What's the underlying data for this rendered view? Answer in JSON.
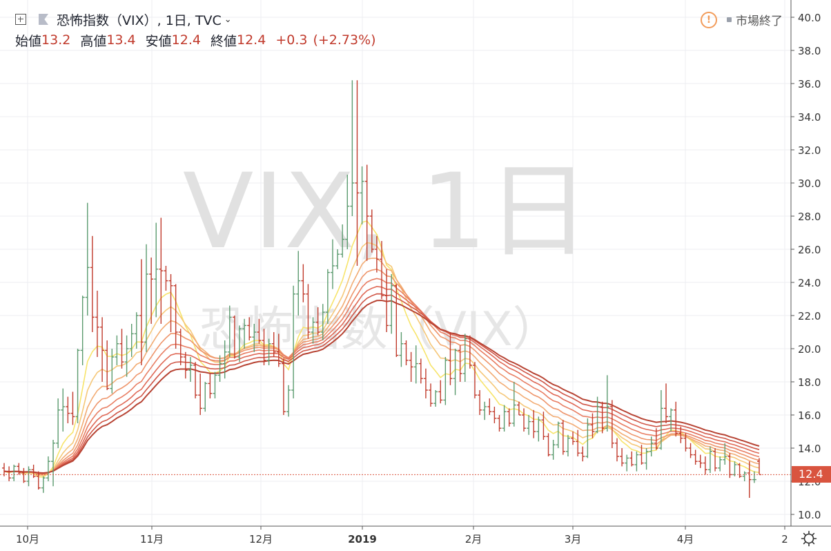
{
  "legend": {
    "title": "恐怖指数（VIX）, 1日, TVC",
    "open_label": "始値",
    "open": "13.2",
    "high_label": "高値",
    "high": "13.4",
    "low_label": "安値",
    "low": "12.4",
    "close_label": "終値",
    "close": "12.4",
    "change": "+0.3",
    "change_pct": "(+2.73%)"
  },
  "status": {
    "text": "市場終了"
  },
  "watermark": {
    "line1": "VIX, 1日",
    "line2": "恐怖指数（VIX）"
  },
  "last_price_label": "12.4",
  "colors": {
    "up": "#5a9a6e",
    "down": "#c0392b",
    "grid": "#eceef2",
    "ribbon": [
      "#f7e46b",
      "#f5c778",
      "#f2ab72",
      "#ee946a",
      "#e87d62",
      "#df6855",
      "#cf5546",
      "#b74333"
    ],
    "price_tag": "#d9543f"
  },
  "chart_data": {
    "type": "ohlc",
    "x_axis": {
      "ticks": [
        "10月",
        "11月",
        "12月",
        "2019",
        "2月",
        "3月",
        "4月",
        "2"
      ]
    },
    "y_axis": {
      "min": 10,
      "max": 40,
      "ticks": [
        "10.0",
        "12.0",
        "14.0",
        "16.0",
        "18.0",
        "20.0",
        "22.0",
        "24.0",
        "26.0",
        "28.0",
        "30.0",
        "32.0",
        "34.0",
        "36.0",
        "38.0",
        "40.0"
      ]
    },
    "last_price": 12.4,
    "ribbon_lengths": [
      8,
      13,
      18,
      23,
      28,
      33,
      38,
      43
    ],
    "ohlc": [
      [
        12.8,
        13.1,
        12.3,
        12.6
      ],
      [
        12.6,
        12.9,
        12.0,
        12.2
      ],
      [
        12.2,
        13.0,
        12.0,
        12.9
      ],
      [
        12.9,
        13.1,
        12.4,
        12.5
      ],
      [
        12.5,
        12.8,
        11.9,
        12.0
      ],
      [
        12.0,
        12.9,
        11.7,
        12.7
      ],
      [
        12.7,
        13.0,
        12.2,
        12.3
      ],
      [
        12.3,
        12.6,
        11.5,
        11.6
      ],
      [
        11.6,
        12.3,
        11.3,
        12.2
      ],
      [
        12.2,
        13.5,
        12.0,
        13.2
      ],
      [
        13.2,
        14.5,
        11.7,
        14.3
      ],
      [
        14.3,
        17.0,
        14.0,
        16.3
      ],
      [
        16.3,
        17.6,
        15.0,
        16.5
      ],
      [
        16.5,
        17.1,
        15.5,
        16.1
      ],
      [
        16.1,
        17.4,
        15.4,
        15.9
      ],
      [
        15.9,
        20.0,
        15.5,
        19.9
      ],
      [
        19.9,
        23.2,
        19.0,
        23.1
      ],
      [
        23.1,
        28.8,
        22.0,
        24.9
      ],
      [
        24.9,
        26.8,
        21.0,
        21.9
      ],
      [
        21.9,
        23.5,
        19.5,
        21.3
      ],
      [
        21.3,
        21.9,
        18.0,
        19.9
      ],
      [
        19.9,
        20.5,
        17.5,
        17.6
      ],
      [
        17.6,
        20.0,
        17.3,
        19.5
      ],
      [
        19.5,
        20.8,
        19.0,
        20.3
      ],
      [
        20.3,
        21.2,
        18.8,
        19.2
      ],
      [
        19.2,
        20.8,
        18.3,
        20.0
      ],
      [
        20.0,
        21.5,
        19.5,
        20.9
      ],
      [
        20.9,
        22.2,
        20.0,
        22.0
      ],
      [
        22.0,
        25.4,
        19.0,
        20.4
      ],
      [
        20.4,
        26.3,
        19.8,
        24.5
      ],
      [
        24.5,
        25.5,
        21.5,
        24.2
      ],
      [
        24.2,
        27.6,
        21.9,
        24.8
      ],
      [
        24.8,
        27.9,
        21.5,
        24.7
      ],
      [
        24.7,
        25.0,
        23.5,
        24.1
      ],
      [
        24.1,
        24.5,
        21.0,
        23.8
      ],
      [
        23.8,
        23.9,
        20.0,
        21.0
      ],
      [
        21.0,
        21.2,
        19.0,
        19.5
      ],
      [
        19.5,
        19.8,
        18.2,
        18.7
      ],
      [
        18.7,
        19.5,
        18.0,
        19.0
      ],
      [
        19.0,
        19.2,
        17.0,
        17.2
      ],
      [
        17.2,
        18.5,
        16.0,
        16.4
      ],
      [
        16.4,
        18.0,
        16.2,
        17.9
      ],
      [
        17.9,
        18.5,
        17.0,
        17.3
      ],
      [
        17.3,
        18.6,
        17.0,
        18.4
      ],
      [
        18.4,
        19.6,
        18.0,
        19.1
      ],
      [
        19.1,
        20.5,
        18.2,
        19.8
      ],
      [
        19.8,
        22.6,
        19.5,
        21.9
      ],
      [
        21.9,
        22.0,
        19.4,
        19.5
      ],
      [
        19.5,
        21.4,
        19.2,
        21.2
      ],
      [
        21.2,
        21.8,
        20.0,
        21.4
      ],
      [
        21.4,
        21.9,
        20.5,
        20.7
      ],
      [
        20.7,
        21.5,
        19.8,
        21.0
      ],
      [
        21.0,
        21.8,
        20.3,
        20.5
      ],
      [
        20.5,
        21.2,
        19.0,
        19.3
      ],
      [
        19.3,
        20.6,
        19.0,
        20.3
      ],
      [
        20.3,
        21.0,
        19.5,
        19.8
      ],
      [
        19.8,
        20.9,
        18.9,
        19.1
      ],
      [
        19.1,
        19.4,
        16.0,
        16.2
      ],
      [
        16.2,
        17.8,
        15.9,
        17.5
      ],
      [
        17.5,
        23.8,
        17.0,
        23.3
      ],
      [
        23.3,
        25.9,
        22.0,
        24.1
      ],
      [
        24.1,
        25.1,
        22.8,
        23.3
      ],
      [
        23.3,
        23.9,
        20.6,
        21.0
      ],
      [
        21.0,
        21.9,
        20.3,
        21.6
      ],
      [
        21.6,
        22.5,
        20.8,
        21.0
      ],
      [
        21.0,
        22.7,
        20.5,
        22.2
      ],
      [
        22.2,
        24.8,
        21.5,
        24.6
      ],
      [
        24.6,
        26.6,
        23.6,
        25.0
      ],
      [
        25.0,
        26.0,
        24.8,
        25.7
      ],
      [
        25.7,
        27.5,
        25.5,
        26.6
      ],
      [
        26.6,
        30.5,
        26.0,
        28.6
      ],
      [
        28.6,
        36.2,
        28.0,
        30.0
      ],
      [
        30.0,
        36.2,
        25.0,
        29.4
      ],
      [
        29.4,
        31.0,
        27.5,
        30.1
      ],
      [
        30.1,
        31.1,
        25.3,
        28.0
      ],
      [
        28.0,
        28.4,
        25.8,
        26.0
      ],
      [
        26.0,
        26.8,
        24.6,
        25.4
      ],
      [
        25.4,
        26.5,
        23.0,
        23.2
      ],
      [
        23.2,
        24.8,
        21.0,
        21.4
      ],
      [
        21.4,
        24.5,
        20.9,
        23.8
      ],
      [
        23.8,
        23.9,
        19.5,
        19.6
      ],
      [
        19.6,
        21.0,
        18.9,
        20.3
      ],
      [
        20.3,
        20.5,
        19.0,
        19.3
      ],
      [
        19.3,
        19.8,
        18.0,
        18.9
      ],
      [
        18.9,
        20.2,
        17.9,
        19.1
      ],
      [
        19.1,
        19.4,
        17.9,
        18.2
      ],
      [
        18.2,
        18.8,
        17.0,
        17.5
      ],
      [
        17.5,
        17.9,
        16.5,
        16.7
      ],
      [
        16.7,
        17.5,
        16.5,
        17.4
      ],
      [
        17.4,
        18.1,
        16.7,
        16.9
      ],
      [
        16.9,
        19.5,
        16.6,
        19.3
      ],
      [
        19.3,
        21.0,
        17.8,
        18.2
      ],
      [
        18.2,
        20.0,
        17.2,
        19.9
      ],
      [
        19.9,
        20.2,
        18.0,
        18.5
      ],
      [
        18.5,
        20.9,
        18.0,
        20.6
      ],
      [
        20.6,
        20.8,
        18.8,
        19.0
      ],
      [
        19.0,
        19.2,
        17.0,
        17.2
      ],
      [
        17.2,
        17.5,
        16.0,
        16.3
      ],
      [
        16.3,
        16.8,
        15.7,
        16.5
      ],
      [
        16.5,
        17.0,
        16.0,
        16.2
      ],
      [
        16.2,
        16.5,
        15.5,
        15.8
      ],
      [
        15.8,
        16.0,
        15.0,
        15.2
      ],
      [
        15.2,
        16.6,
        15.0,
        16.2
      ],
      [
        16.2,
        16.4,
        15.3,
        15.5
      ],
      [
        15.5,
        18.0,
        15.3,
        16.6
      ],
      [
        16.6,
        16.8,
        16.0,
        16.0
      ],
      [
        16.0,
        16.4,
        15.0,
        15.2
      ],
      [
        15.2,
        16.0,
        14.8,
        15.6
      ],
      [
        15.6,
        16.3,
        14.6,
        15.0
      ],
      [
        15.0,
        15.9,
        14.4,
        15.7
      ],
      [
        15.7,
        16.2,
        14.5,
        14.7
      ],
      [
        14.7,
        14.9,
        13.5,
        13.6
      ],
      [
        13.6,
        14.5,
        13.3,
        14.2
      ],
      [
        14.2,
        15.6,
        14.0,
        15.5
      ],
      [
        15.5,
        15.7,
        13.6,
        13.8
      ],
      [
        13.8,
        14.8,
        13.5,
        14.6
      ],
      [
        14.6,
        15.0,
        14.2,
        14.4
      ],
      [
        14.4,
        15.1,
        13.5,
        13.7
      ],
      [
        13.7,
        14.1,
        13.2,
        13.5
      ],
      [
        13.5,
        15.8,
        13.4,
        15.4
      ],
      [
        15.4,
        16.1,
        14.6,
        15.0
      ],
      [
        15.0,
        17.1,
        14.9,
        16.5
      ],
      [
        16.5,
        16.8,
        14.9,
        15.2
      ],
      [
        15.2,
        18.4,
        15.0,
        16.5
      ],
      [
        16.5,
        16.9,
        14.0,
        14.3
      ],
      [
        14.3,
        14.6,
        13.2,
        13.5
      ],
      [
        13.5,
        14.0,
        12.9,
        13.1
      ],
      [
        13.1,
        13.6,
        12.6,
        13.4
      ],
      [
        13.4,
        13.8,
        12.9,
        13.0
      ],
      [
        13.0,
        13.8,
        12.6,
        13.6
      ],
      [
        13.6,
        14.2,
        13.0,
        13.1
      ],
      [
        13.1,
        14.0,
        12.7,
        13.8
      ],
      [
        13.8,
        14.7,
        13.5,
        14.3
      ],
      [
        14.3,
        15.2,
        13.9,
        14.0
      ],
      [
        14.0,
        17.5,
        13.9,
        16.4
      ],
      [
        16.4,
        17.9,
        15.5,
        15.9
      ],
      [
        15.9,
        16.4,
        15.0,
        16.3
      ],
      [
        16.3,
        16.8,
        14.7,
        14.9
      ],
      [
        14.9,
        15.3,
        14.3,
        14.6
      ],
      [
        14.6,
        14.9,
        13.8,
        14.0
      ],
      [
        14.0,
        14.3,
        13.4,
        13.6
      ],
      [
        13.6,
        13.9,
        13.0,
        13.2
      ],
      [
        13.2,
        13.6,
        12.8,
        13.1
      ],
      [
        13.1,
        13.5,
        12.4,
        12.7
      ],
      [
        12.7,
        14.1,
        12.5,
        13.8
      ],
      [
        13.8,
        14.0,
        12.6,
        12.8
      ],
      [
        12.8,
        13.5,
        12.6,
        13.3
      ],
      [
        13.3,
        14.3,
        13.0,
        13.5
      ],
      [
        13.5,
        13.7,
        12.2,
        12.4
      ],
      [
        12.4,
        13.2,
        12.3,
        13.0
      ],
      [
        13.0,
        13.1,
        12.2,
        12.3
      ],
      [
        12.3,
        12.6,
        12.0,
        12.5
      ],
      [
        12.5,
        13.2,
        11.0,
        12.1
      ],
      [
        12.1,
        12.6,
        11.9,
        12.1
      ],
      [
        13.2,
        13.4,
        12.4,
        12.4
      ]
    ]
  }
}
